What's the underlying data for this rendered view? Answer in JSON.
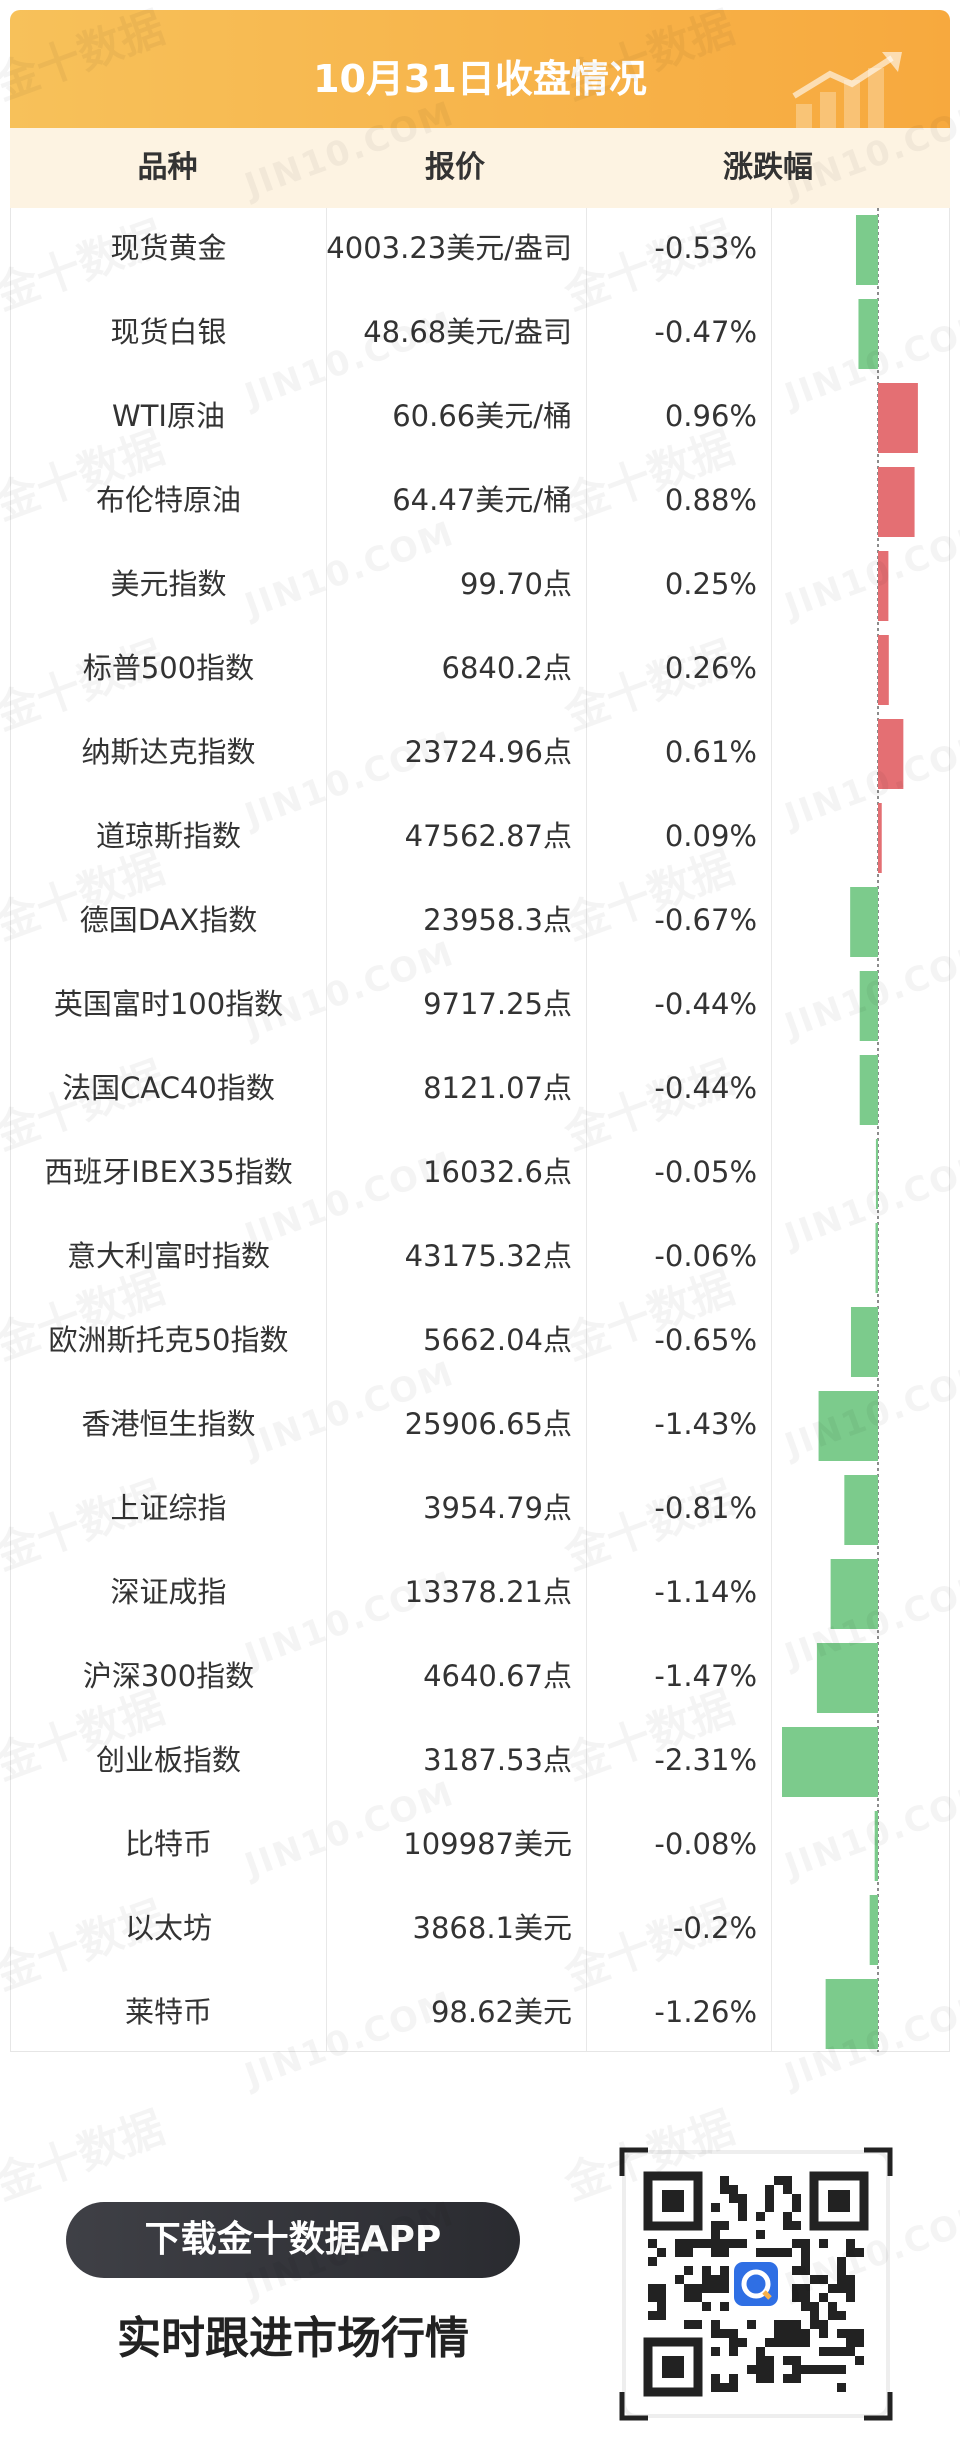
{
  "title": "10月31日收盘情况",
  "columns": [
    "品种",
    "报价",
    "涨跌幅"
  ],
  "colors": {
    "up": "#e46f73",
    "down": "#7ccb8c",
    "accent": "#f7b04a",
    "header_bg": "#fdf3e2"
  },
  "rows": [
    {
      "name": "现货黄金",
      "price": "4003.23美元/盎司",
      "change_text": "-0.53%",
      "change": -0.53
    },
    {
      "name": "现货白银",
      "price": "48.68美元/盎司",
      "change_text": "-0.47%",
      "change": -0.47
    },
    {
      "name": "WTI原油",
      "price": "60.66美元/桶",
      "change_text": "0.96%",
      "change": 0.96
    },
    {
      "name": "布伦特原油",
      "price": "64.47美元/桶",
      "change_text": "0.88%",
      "change": 0.88
    },
    {
      "name": "美元指数",
      "price": "99.70点",
      "change_text": "0.25%",
      "change": 0.25
    },
    {
      "name": "标普500指数",
      "price": "6840.2点",
      "change_text": "0.26%",
      "change": 0.26
    },
    {
      "name": "纳斯达克指数",
      "price": "23724.96点",
      "change_text": "0.61%",
      "change": 0.61
    },
    {
      "name": "道琼斯指数",
      "price": "47562.87点",
      "change_text": "0.09%",
      "change": 0.09
    },
    {
      "name": "德国DAX指数",
      "price": "23958.3点",
      "change_text": "-0.67%",
      "change": -0.67
    },
    {
      "name": "英国富时100指数",
      "price": "9717.25点",
      "change_text": "-0.44%",
      "change": -0.44
    },
    {
      "name": "法国CAC40指数",
      "price": "8121.07点",
      "change_text": "-0.44%",
      "change": -0.44
    },
    {
      "name": "西班牙IBEX35指数",
      "price": "16032.6点",
      "change_text": "-0.05%",
      "change": -0.05
    },
    {
      "name": "意大利富时指数",
      "price": "43175.32点",
      "change_text": "-0.06%",
      "change": -0.06
    },
    {
      "name": "欧洲斯托克50指数",
      "price": "5662.04点",
      "change_text": "-0.65%",
      "change": -0.65
    },
    {
      "name": "香港恒生指数",
      "price": "25906.65点",
      "change_text": "-1.43%",
      "change": -1.43
    },
    {
      "name": "上证综指",
      "price": "3954.79点",
      "change_text": "-0.81%",
      "change": -0.81
    },
    {
      "name": "深证成指",
      "price": "13378.21点",
      "change_text": "-1.14%",
      "change": -1.14
    },
    {
      "name": "沪深300指数",
      "price": "4640.67点",
      "change_text": "-1.47%",
      "change": -1.47
    },
    {
      "name": "创业板指数",
      "price": "3187.53点",
      "change_text": "-2.31%",
      "change": -2.31
    },
    {
      "name": "比特币",
      "price": "109987美元",
      "change_text": "-0.08%",
      "change": -0.08
    },
    {
      "name": "以太坊",
      "price": "3868.1美元",
      "change_text": "-0.2%",
      "change": -0.2
    },
    {
      "name": "莱特币",
      "price": "98.62美元",
      "change_text": "-1.26%",
      "change": -1.26
    }
  ],
  "chart_data": {
    "type": "bar",
    "orientation": "horizontal",
    "categories": [
      "现货黄金",
      "现货白银",
      "WTI原油",
      "布伦特原油",
      "美元指数",
      "标普500指数",
      "纳斯达克指数",
      "道琼斯指数",
      "德国DAX指数",
      "英国富时100指数",
      "法国CAC40指数",
      "西班牙IBEX35指数",
      "意大利富时指数",
      "欧洲斯托克50指数",
      "香港恒生指数",
      "上证综指",
      "深证成指",
      "沪深300指数",
      "创业板指数",
      "比特币",
      "以太坊",
      "莱特币"
    ],
    "values": [
      -0.53,
      -0.47,
      0.96,
      0.88,
      0.25,
      0.26,
      0.61,
      0.09,
      -0.67,
      -0.44,
      -0.44,
      -0.05,
      -0.06,
      -0.65,
      -1.43,
      -0.81,
      -1.14,
      -1.47,
      -2.31,
      -0.08,
      -0.2,
      -1.26
    ],
    "unit": "%",
    "xlim": [
      -2.31,
      0.96
    ],
    "zero_line": "dashed"
  },
  "footer": {
    "download_label": "下载金十数据APP",
    "slogan": "实时跟进市场行情"
  },
  "watermark": {
    "cn": "金十数据",
    "en": "JIN10.COM"
  }
}
